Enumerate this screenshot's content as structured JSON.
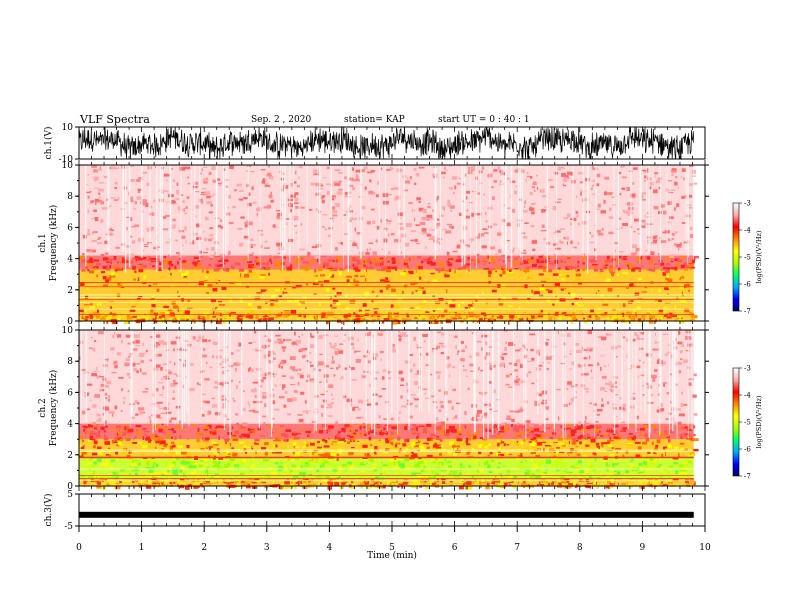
{
  "header": {
    "title": "VLF Spectra",
    "date": "Sep. 2 , 2020",
    "station": "station= KAP",
    "start_ut": "start  UT =  0 : 40 : 1"
  },
  "chart_data": [
    {
      "type": "line",
      "name": "ch1-waveform",
      "ylabel": "ch.1(V)",
      "ylim": [
        -10,
        10
      ],
      "yticks": [
        "10",
        "-10"
      ],
      "xlim": [
        0,
        10
      ],
      "x_end": 9.82
    },
    {
      "type": "heatmap",
      "name": "ch1-spectrogram",
      "ylabel": "ch.1\nFrequency  (kHz)",
      "ylim": [
        0,
        10
      ],
      "yticks": [
        "0",
        "2",
        "4",
        "6",
        "8",
        "10"
      ],
      "xlim": [
        0,
        10
      ],
      "x_end": 9.82,
      "bands": [
        {
          "from": 0,
          "to": 0.6,
          "level": "yellow-red"
        },
        {
          "from": 0.6,
          "to": 3.3,
          "level": "yellow"
        },
        {
          "from": 3.3,
          "to": 4.2,
          "level": "red"
        },
        {
          "from": 4.2,
          "to": 10,
          "level": "light-red"
        }
      ],
      "colorbar": {
        "label": "log(PSD)(V²/Hz)",
        "ticks": [
          "-3",
          "-4",
          "-5",
          "-6",
          "-7"
        ],
        "range": [
          -7,
          -3
        ],
        "colors": [
          "#000066",
          "#0000ff",
          "#00aaff",
          "#00ff66",
          "#aaff00",
          "#ffff00",
          "#ff8800",
          "#ff0000",
          "#ffaaaa",
          "#ffffff"
        ]
      }
    },
    {
      "type": "heatmap",
      "name": "ch2-spectrogram",
      "ylabel": "ch.2\nFrequency  (kHz)",
      "ylim": [
        0,
        10
      ],
      "yticks": [
        "0",
        "2",
        "4",
        "6",
        "8",
        "10"
      ],
      "xlim": [
        0,
        10
      ],
      "x_end": 9.82,
      "bands": [
        {
          "from": 0,
          "to": 0.5,
          "level": "yellow-red"
        },
        {
          "from": 0.5,
          "to": 1.8,
          "level": "green"
        },
        {
          "from": 1.8,
          "to": 3.0,
          "level": "yellow"
        },
        {
          "from": 3.0,
          "to": 4.0,
          "level": "red"
        },
        {
          "from": 4.0,
          "to": 10,
          "level": "light-red"
        }
      ],
      "colorbar": {
        "label": "log(PSD)(V²/Hz)",
        "ticks": [
          "-3",
          "-4",
          "-5",
          "-6",
          "-7"
        ],
        "range": [
          -7,
          -3
        ],
        "colors": [
          "#000066",
          "#0000ff",
          "#00aaff",
          "#00ff66",
          "#aaff00",
          "#ffff00",
          "#ff8800",
          "#ff0000",
          "#ffaaaa",
          "#ffffff"
        ]
      }
    },
    {
      "type": "line",
      "name": "ch3-waveform",
      "ylabel": "ch.3(V)",
      "ylim": [
        -5,
        5
      ],
      "yticks": [
        "5",
        "-5"
      ],
      "level": -1.5,
      "xlim": [
        0,
        10
      ],
      "x_end": 9.82,
      "xlabel": "Time  (min)",
      "xticks": [
        "0",
        "1",
        "2",
        "3",
        "4",
        "5",
        "6",
        "7",
        "8",
        "9",
        "10"
      ]
    }
  ]
}
